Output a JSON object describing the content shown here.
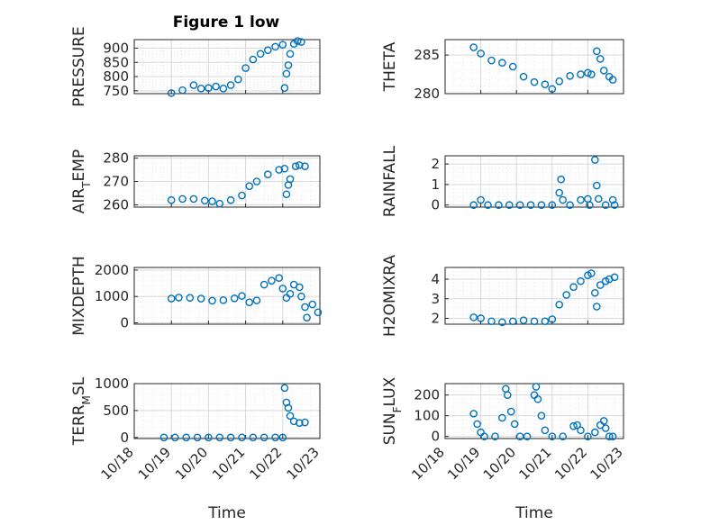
{
  "figure": {
    "title": "Figure 1 low"
  },
  "colors": {
    "marker": "#0072BD",
    "axis": "#262626",
    "grid": "#d9d9d9"
  },
  "chart_data": [
    {
      "type": "scatter",
      "title": "Figure 1 low",
      "xlabel": "",
      "ylabel": "PRESSURE",
      "ylim": [
        740,
        930
      ],
      "yticks": [
        750,
        800,
        850,
        900
      ],
      "xlim": [
        18,
        23
      ],
      "grid": true,
      "points": [
        [
          19.0,
          742
        ],
        [
          19.3,
          752
        ],
        [
          19.6,
          770
        ],
        [
          19.8,
          758
        ],
        [
          20.0,
          760
        ],
        [
          20.2,
          765
        ],
        [
          20.4,
          758
        ],
        [
          20.6,
          770
        ],
        [
          20.8,
          790
        ],
        [
          21.0,
          830
        ],
        [
          21.2,
          860
        ],
        [
          21.4,
          880
        ],
        [
          21.6,
          893
        ],
        [
          21.8,
          905
        ],
        [
          22.0,
          912
        ],
        [
          22.05,
          760
        ],
        [
          22.1,
          810
        ],
        [
          22.15,
          840
        ],
        [
          22.2,
          880
        ],
        [
          22.3,
          915
        ],
        [
          22.4,
          925
        ],
        [
          22.5,
          922
        ]
      ]
    },
    {
      "type": "scatter",
      "xlabel": "",
      "ylabel": "THETA",
      "ylim": [
        280,
        287
      ],
      "yticks": [
        280,
        285
      ],
      "xlim": [
        18,
        23
      ],
      "grid": true,
      "points": [
        [
          18.8,
          286.0
        ],
        [
          19.0,
          285.2
        ],
        [
          19.3,
          284.3
        ],
        [
          19.6,
          284.0
        ],
        [
          19.9,
          283.5
        ],
        [
          20.2,
          282.2
        ],
        [
          20.5,
          281.5
        ],
        [
          20.8,
          281.2
        ],
        [
          21.0,
          280.6
        ],
        [
          21.2,
          281.6
        ],
        [
          21.5,
          282.3
        ],
        [
          21.8,
          282.5
        ],
        [
          22.0,
          282.7
        ],
        [
          22.1,
          282.5
        ],
        [
          22.25,
          285.5
        ],
        [
          22.35,
          284.5
        ],
        [
          22.45,
          283.0
        ],
        [
          22.6,
          282.2
        ],
        [
          22.7,
          281.8
        ]
      ]
    },
    {
      "type": "scatter",
      "xlabel": "",
      "ylabel": "AIR_TEMP",
      "ylim": [
        259,
        281
      ],
      "yticks": [
        260,
        270,
        280
      ],
      "xlim": [
        18,
        23
      ],
      "grid": true,
      "points": [
        [
          19.0,
          262
        ],
        [
          19.3,
          262.5
        ],
        [
          19.6,
          262.5
        ],
        [
          19.9,
          261.8
        ],
        [
          20.1,
          261.5
        ],
        [
          20.3,
          260.5
        ],
        [
          20.6,
          262
        ],
        [
          20.9,
          264
        ],
        [
          21.1,
          268
        ],
        [
          21.3,
          270
        ],
        [
          21.6,
          273
        ],
        [
          21.9,
          275
        ],
        [
          22.05,
          275.5
        ],
        [
          22.1,
          264.5
        ],
        [
          22.15,
          268.5
        ],
        [
          22.2,
          271
        ],
        [
          22.35,
          276.5
        ],
        [
          22.45,
          277
        ],
        [
          22.6,
          276.5
        ]
      ]
    },
    {
      "type": "scatter",
      "xlabel": "",
      "ylabel": "RAINFALL",
      "ylim": [
        -0.1,
        2.4
      ],
      "yticks": [
        0,
        1,
        2
      ],
      "xlim": [
        18,
        23
      ],
      "grid": true,
      "points": [
        [
          18.8,
          0
        ],
        [
          19.0,
          0.25
        ],
        [
          19.2,
          0
        ],
        [
          19.5,
          0
        ],
        [
          19.8,
          0
        ],
        [
          20.1,
          0
        ],
        [
          20.4,
          0
        ],
        [
          20.7,
          0
        ],
        [
          21.0,
          0
        ],
        [
          21.2,
          0.6
        ],
        [
          21.25,
          1.25
        ],
        [
          21.3,
          0.25
        ],
        [
          21.5,
          0
        ],
        [
          21.8,
          0.25
        ],
        [
          22.0,
          0.3
        ],
        [
          22.05,
          0
        ],
        [
          22.2,
          2.2
        ],
        [
          22.25,
          0.95
        ],
        [
          22.3,
          0.3
        ],
        [
          22.5,
          0
        ],
        [
          22.7,
          0.25
        ],
        [
          22.75,
          0
        ]
      ]
    },
    {
      "type": "scatter",
      "xlabel": "",
      "ylabel": "MIXDEPTH",
      "ylim": [
        -50,
        2100
      ],
      "yticks": [
        0,
        1000,
        2000
      ],
      "xlim": [
        18,
        23
      ],
      "grid": true,
      "points": [
        [
          19.0,
          920
        ],
        [
          19.2,
          960
        ],
        [
          19.5,
          950
        ],
        [
          19.8,
          920
        ],
        [
          20.1,
          840
        ],
        [
          20.4,
          860
        ],
        [
          20.7,
          930
        ],
        [
          20.9,
          1020
        ],
        [
          21.1,
          780
        ],
        [
          21.3,
          850
        ],
        [
          21.5,
          1450
        ],
        [
          21.7,
          1600
        ],
        [
          21.9,
          1700
        ],
        [
          22.0,
          1300
        ],
        [
          22.1,
          950
        ],
        [
          22.2,
          1100
        ],
        [
          22.3,
          1450
        ],
        [
          22.45,
          1350
        ],
        [
          22.5,
          1000
        ],
        [
          22.6,
          600
        ],
        [
          22.65,
          200
        ],
        [
          22.8,
          700
        ],
        [
          22.95,
          400
        ]
      ]
    },
    {
      "type": "scatter",
      "xlabel": "",
      "ylabel": "H2OMIXRA",
      "ylim": [
        1.7,
        4.6
      ],
      "yticks": [
        2,
        3,
        4
      ],
      "xlim": [
        18,
        23
      ],
      "grid": true,
      "points": [
        [
          18.8,
          2.05
        ],
        [
          19.0,
          2.0
        ],
        [
          19.3,
          1.85
        ],
        [
          19.6,
          1.8
        ],
        [
          19.9,
          1.85
        ],
        [
          20.2,
          1.9
        ],
        [
          20.5,
          1.85
        ],
        [
          20.8,
          1.85
        ],
        [
          21.0,
          1.95
        ],
        [
          21.2,
          2.7
        ],
        [
          21.4,
          3.2
        ],
        [
          21.6,
          3.6
        ],
        [
          21.8,
          3.9
        ],
        [
          22.0,
          4.2
        ],
        [
          22.1,
          4.3
        ],
        [
          22.2,
          3.3
        ],
        [
          22.25,
          2.6
        ],
        [
          22.35,
          3.7
        ],
        [
          22.5,
          3.9
        ],
        [
          22.6,
          4.0
        ],
        [
          22.75,
          4.1
        ]
      ]
    },
    {
      "type": "scatter",
      "xlabel": "Time",
      "ylabel": "TERR_MSL",
      "ylim": [
        -20,
        1000
      ],
      "yticks": [
        0,
        500,
        1000
      ],
      "xlim": [
        18,
        23
      ],
      "grid": true,
      "xticks": [
        "10/18",
        "10/19",
        "10/20",
        "10/21",
        "10/22",
        "10/23"
      ],
      "points": [
        [
          18.8,
          0
        ],
        [
          19.1,
          0
        ],
        [
          19.4,
          0
        ],
        [
          19.7,
          0
        ],
        [
          20.0,
          0
        ],
        [
          20.3,
          0
        ],
        [
          20.6,
          0
        ],
        [
          20.9,
          0
        ],
        [
          21.2,
          0
        ],
        [
          21.5,
          0
        ],
        [
          21.8,
          0
        ],
        [
          22.0,
          0
        ],
        [
          22.05,
          920
        ],
        [
          22.1,
          650
        ],
        [
          22.15,
          550
        ],
        [
          22.2,
          400
        ],
        [
          22.3,
          300
        ],
        [
          22.45,
          270
        ],
        [
          22.6,
          280
        ]
      ]
    },
    {
      "type": "scatter",
      "xlabel": "Time",
      "ylabel": "SUN_FLUX",
      "ylim": [
        -10,
        255
      ],
      "yticks": [
        0,
        100,
        200
      ],
      "xlim": [
        18,
        23
      ],
      "grid": true,
      "xticks": [
        "10/18",
        "10/19",
        "10/20",
        "10/21",
        "10/22",
        "10/23"
      ],
      "points": [
        [
          18.8,
          110
        ],
        [
          18.9,
          60
        ],
        [
          19.0,
          20
        ],
        [
          19.1,
          0
        ],
        [
          19.4,
          0
        ],
        [
          19.6,
          90
        ],
        [
          19.7,
          230
        ],
        [
          19.75,
          200
        ],
        [
          19.85,
          120
        ],
        [
          19.95,
          60
        ],
        [
          20.1,
          0
        ],
        [
          20.3,
          0
        ],
        [
          20.5,
          200
        ],
        [
          20.55,
          240
        ],
        [
          20.6,
          180
        ],
        [
          20.7,
          100
        ],
        [
          20.8,
          30
        ],
        [
          21.0,
          0
        ],
        [
          21.3,
          0
        ],
        [
          21.6,
          50
        ],
        [
          21.7,
          55
        ],
        [
          21.8,
          30
        ],
        [
          22.0,
          0
        ],
        [
          22.2,
          20
        ],
        [
          22.35,
          55
        ],
        [
          22.45,
          75
        ],
        [
          22.5,
          40
        ],
        [
          22.6,
          0
        ],
        [
          22.7,
          0
        ]
      ]
    }
  ]
}
